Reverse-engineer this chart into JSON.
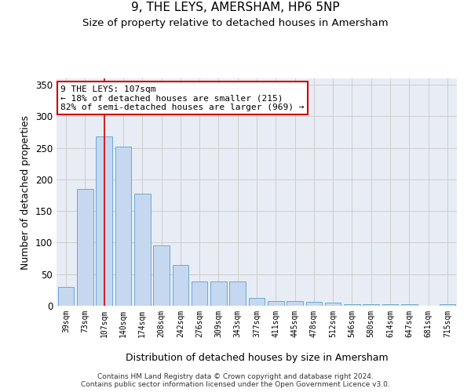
{
  "title": "9, THE LEYS, AMERSHAM, HP6 5NP",
  "subtitle": "Size of property relative to detached houses in Amersham",
  "xlabel": "Distribution of detached houses by size in Amersham",
  "ylabel": "Number of detached properties",
  "categories": [
    "39sqm",
    "73sqm",
    "107sqm",
    "140sqm",
    "174sqm",
    "208sqm",
    "242sqm",
    "276sqm",
    "309sqm",
    "343sqm",
    "377sqm",
    "411sqm",
    "445sqm",
    "478sqm",
    "512sqm",
    "546sqm",
    "580sqm",
    "614sqm",
    "647sqm",
    "681sqm",
    "715sqm"
  ],
  "values": [
    30,
    185,
    268,
    252,
    177,
    95,
    65,
    38,
    38,
    38,
    12,
    8,
    7,
    6,
    5,
    3,
    3,
    3,
    3,
    0,
    3
  ],
  "bar_color": "#c5d8ef",
  "bar_edge_color": "#6aaad4",
  "highlight_index": 2,
  "highlight_line_color": "#cc0000",
  "annotation_box_text": "9 THE LEYS: 107sqm\n← 18% of detached houses are smaller (215)\n82% of semi-detached houses are larger (969) →",
  "annotation_box_color": "#cc0000",
  "annotation_box_fill": "white",
  "ylim": [
    0,
    360
  ],
  "yticks": [
    0,
    50,
    100,
    150,
    200,
    250,
    300,
    350
  ],
  "grid_color": "#cccccc",
  "bg_color": "#e8edf5",
  "footnote": "Contains HM Land Registry data © Crown copyright and database right 2024.\nContains public sector information licensed under the Open Government Licence v3.0.",
  "title_fontsize": 11,
  "subtitle_fontsize": 9.5,
  "xlabel_fontsize": 9,
  "ylabel_fontsize": 9,
  "annot_fontsize": 8
}
